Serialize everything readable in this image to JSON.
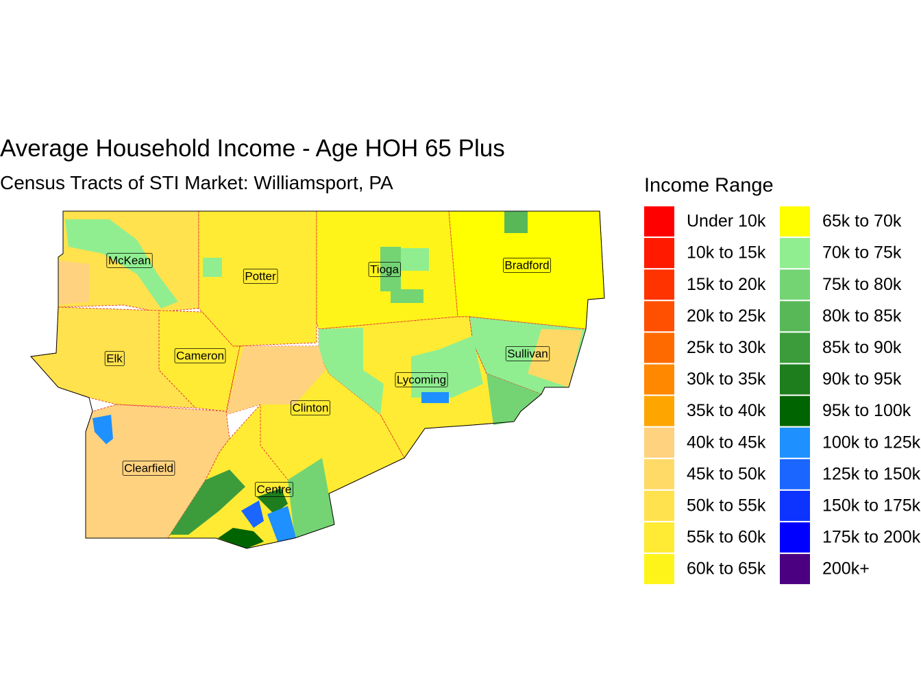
{
  "title": "Average Household Income - Age HOH 65 Plus",
  "subtitle": "Census Tracts of STI Market: Williamsport, PA",
  "legend": {
    "title": "Income Range",
    "items": [
      {
        "label": "Under 10k",
        "color": "#ff0000"
      },
      {
        "label": "10k to 15k",
        "color": "#ff1a00"
      },
      {
        "label": "15k to 20k",
        "color": "#ff3300"
      },
      {
        "label": "20k to 25k",
        "color": "#ff4f00"
      },
      {
        "label": "25k to 30k",
        "color": "#ff6a00"
      },
      {
        "label": "30k to 35k",
        "color": "#ff8800"
      },
      {
        "label": "35k to 40k",
        "color": "#ffa500"
      },
      {
        "label": "40k to 45k",
        "color": "#ffd27f"
      },
      {
        "label": "45k to 50k",
        "color": "#ffda66"
      },
      {
        "label": "50k to 55k",
        "color": "#ffe24d"
      },
      {
        "label": "55k to 60k",
        "color": "#ffeb33"
      },
      {
        "label": "60k to 65k",
        "color": "#fff41a"
      },
      {
        "label": "65k to 70k",
        "color": "#ffff00"
      },
      {
        "label": "70k to 75k",
        "color": "#90ee90"
      },
      {
        "label": "75k to 80k",
        "color": "#74d474"
      },
      {
        "label": "80k to 85k",
        "color": "#58b858"
      },
      {
        "label": "85k to 90k",
        "color": "#3c9c3c"
      },
      {
        "label": "90k to 95k",
        "color": "#1e7e1e"
      },
      {
        "label": "95k to 100k",
        "color": "#006400"
      },
      {
        "label": "100k to 125k",
        "color": "#1e90ff"
      },
      {
        "label": "125k to 150k",
        "color": "#1a66ff"
      },
      {
        "label": "150k to 175k",
        "color": "#0d33ff"
      },
      {
        "label": "175k to 200k",
        "color": "#0000ff"
      },
      {
        "label": "200k+",
        "color": "#4b0082"
      }
    ]
  },
  "counties": [
    {
      "label": "McKean"
    },
    {
      "label": "Potter"
    },
    {
      "label": "Tioga"
    },
    {
      "label": "Bradford"
    },
    {
      "label": "Elk"
    },
    {
      "label": "Cameron"
    },
    {
      "label": "Sullivan"
    },
    {
      "label": "Lycoming"
    },
    {
      "label": "Clinton"
    },
    {
      "label": "Clearfield"
    },
    {
      "label": "Centre"
    }
  ]
}
